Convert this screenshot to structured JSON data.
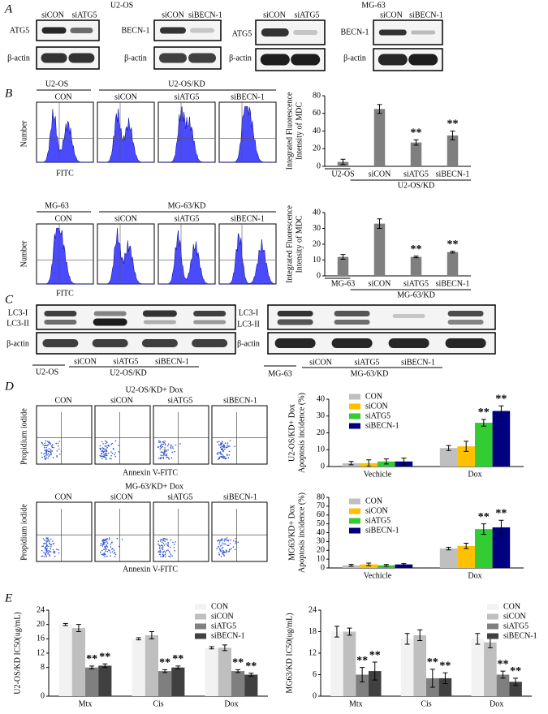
{
  "letters": [
    "A",
    "B",
    "C",
    "D",
    "E"
  ],
  "blotA": {
    "u2os": "U2-OS",
    "mg63": "MG-63",
    "sicon": "siCON",
    "siatg5": "siATG5",
    "sibecn1": "siBECN-1",
    "atg5": "ATG5",
    "becn1": "BECN-1",
    "actin": "β-actin"
  },
  "flowB": {
    "u2os": "U2-OS",
    "u2oskd": "U2-OS/KD",
    "mg63": "MG-63",
    "mg63kd": "MG-63/KD",
    "labels": [
      "CON",
      "siCON",
      "siATG5",
      "siBECN-1"
    ],
    "ylabel": "Number",
    "xlabel": "FITC"
  },
  "blotC": {
    "lc3i": "LC3-I",
    "lc3ii": "LC3-II",
    "actin": "β-actin",
    "u2os": "U2-OS",
    "u2oskd": "U2-OS/KD",
    "mg63": "MG-63",
    "mg63kd": "MG-63/KD",
    "lanes": [
      "siCON",
      "siATG5",
      "siBECN-1"
    ]
  },
  "flowD": {
    "top": "U2-OS/KD+ Dox",
    "bottom": "MG-63/KD+ Dox",
    "labels": [
      "CON",
      "siCON",
      "siATG5",
      "siBECN-1"
    ],
    "ylabel": "Propidium iodide",
    "xlabel": "Annexin V-FITC"
  },
  "chart_data": [
    {
      "type": "bar",
      "categories": [
        "U2-OS",
        "siCON",
        "siATG5",
        "siBECN-1"
      ],
      "group_label": "U2-OS/KD",
      "values": [
        5,
        65,
        27,
        35
      ],
      "errors": [
        3,
        5,
        3,
        5
      ],
      "annotations": [
        null,
        null,
        "**",
        "**"
      ],
      "color": "#7f7f7f",
      "ylabel": [
        "Integrated Fluorescence",
        "Intensity of MDC"
      ],
      "ylim": [
        0,
        80
      ],
      "yticks": [
        0,
        20,
        40,
        60,
        80
      ]
    },
    {
      "type": "bar",
      "categories": [
        "MG-63",
        "siCON",
        "siATG5",
        "siBECN-1"
      ],
      "group_label": "MG-63/KD",
      "values": [
        12,
        33,
        12,
        15
      ],
      "errors": [
        1.5,
        3,
        0.5,
        0.5
      ],
      "annotations": [
        null,
        null,
        "**",
        "**"
      ],
      "color": "#7f7f7f",
      "ylabel": [
        "Integrated Fluorescence",
        "Intensity of MDC"
      ],
      "ylim": [
        0,
        40
      ],
      "yticks": [
        0,
        10,
        20,
        30,
        40
      ]
    },
    {
      "type": "bar",
      "categories": [
        "Vechicle",
        "Dox"
      ],
      "ylabel": [
        "U2-OS/KD+ Dox",
        "Apoptosis incidence (%)"
      ],
      "ylim": [
        0,
        40
      ],
      "yticks": [
        0,
        10,
        20,
        30,
        40
      ],
      "series": [
        {
          "name": "CON",
          "color": "#bfbfbf",
          "values": [
            2,
            11
          ],
          "errors": [
            1,
            1.5
          ],
          "annotations": [
            null,
            null
          ]
        },
        {
          "name": "siCON",
          "color": "#ffc000",
          "values": [
            2,
            12
          ],
          "errors": [
            2,
            3
          ],
          "annotations": [
            null,
            null
          ]
        },
        {
          "name": "siATG5",
          "color": "#33cc33",
          "values": [
            3,
            26
          ],
          "errors": [
            1.5,
            2
          ],
          "annotations": [
            null,
            "**"
          ]
        },
        {
          "name": "siBECN-1",
          "color": "#000080",
          "values": [
            3,
            33
          ],
          "errors": [
            2,
            3
          ],
          "annotations": [
            null,
            "**"
          ]
        }
      ]
    },
    {
      "type": "bar",
      "categories": [
        "Vechicle",
        "Dox"
      ],
      "ylabel": [
        "MG63/KD+ Dox",
        "Apoptosis incidence (%)"
      ],
      "ylim": [
        0,
        80
      ],
      "yticks": [
        0,
        10,
        20,
        30,
        40,
        50,
        60,
        70,
        80
      ],
      "series": [
        {
          "name": "CON",
          "color": "#bfbfbf",
          "values": [
            3,
            22
          ],
          "errors": [
            1,
            1.5
          ],
          "annotations": [
            null,
            null
          ]
        },
        {
          "name": "siCON",
          "color": "#ffc000",
          "values": [
            4,
            25
          ],
          "errors": [
            1.5,
            3
          ],
          "annotations": [
            null,
            null
          ]
        },
        {
          "name": "siATG5",
          "color": "#33cc33",
          "values": [
            3,
            44
          ],
          "errors": [
            1,
            6
          ],
          "annotations": [
            null,
            "**"
          ]
        },
        {
          "name": "siBECN-1",
          "color": "#000080",
          "values": [
            4,
            46
          ],
          "errors": [
            1,
            8
          ],
          "annotations": [
            null,
            "**"
          ]
        }
      ]
    },
    {
      "type": "bar",
      "categories": [
        "Mtx",
        "Cis",
        "Dox"
      ],
      "ylabel": [
        "U2-OS/KD IC50(ug/mL)"
      ],
      "ylim": [
        0,
        24
      ],
      "yticks": [
        0,
        8,
        12,
        16,
        20,
        24
      ],
      "series": [
        {
          "name": "CON",
          "color": "#f2f2f2",
          "values": [
            20,
            16,
            13.5
          ],
          "errors": [
            0.3,
            0.3,
            0.3
          ],
          "annotations": [
            null,
            null,
            null
          ]
        },
        {
          "name": "siCON",
          "color": "#bfbfbf",
          "values": [
            19,
            17,
            13.5
          ],
          "errors": [
            1,
            1,
            0.8
          ],
          "annotations": [
            null,
            null,
            null
          ]
        },
        {
          "name": "siATG5",
          "color": "#7f7f7f",
          "values": [
            8,
            7,
            7
          ],
          "errors": [
            0.4,
            0.4,
            0.4
          ],
          "annotations": [
            "**",
            "**",
            "**"
          ]
        },
        {
          "name": "siBECN-1",
          "color": "#404040",
          "values": [
            8.5,
            8,
            6
          ],
          "errors": [
            0.5,
            0.4,
            0.4
          ],
          "annotations": [
            "**",
            "**",
            "**"
          ]
        }
      ]
    },
    {
      "type": "bar",
      "categories": [
        "Mtx",
        "Cis",
        "Dox"
      ],
      "ylabel": [
        "MG63/KD IC50(ug/mL)"
      ],
      "ylim": [
        0,
        24
      ],
      "yticks": [
        0,
        6,
        12,
        18,
        24
      ],
      "series": [
        {
          "name": "CON",
          "color": "#f2f2f2",
          "values": [
            18,
            16,
            16
          ],
          "errors": [
            1.5,
            1.5,
            1.5
          ],
          "annotations": [
            null,
            null,
            null
          ]
        },
        {
          "name": "siCON",
          "color": "#bfbfbf",
          "values": [
            18,
            17,
            15
          ],
          "errors": [
            1,
            1.5,
            1.5
          ],
          "annotations": [
            null,
            null,
            null
          ]
        },
        {
          "name": "siATG5",
          "color": "#7f7f7f",
          "values": [
            6,
            5,
            6
          ],
          "errors": [
            2,
            2.5,
            1
          ],
          "annotations": [
            "**",
            "**",
            "**"
          ]
        },
        {
          "name": "siBECN-1",
          "color": "#404040",
          "values": [
            7,
            5,
            4
          ],
          "errors": [
            2.5,
            1.5,
            1
          ],
          "annotations": [
            "**",
            "**",
            "**"
          ]
        }
      ]
    }
  ]
}
